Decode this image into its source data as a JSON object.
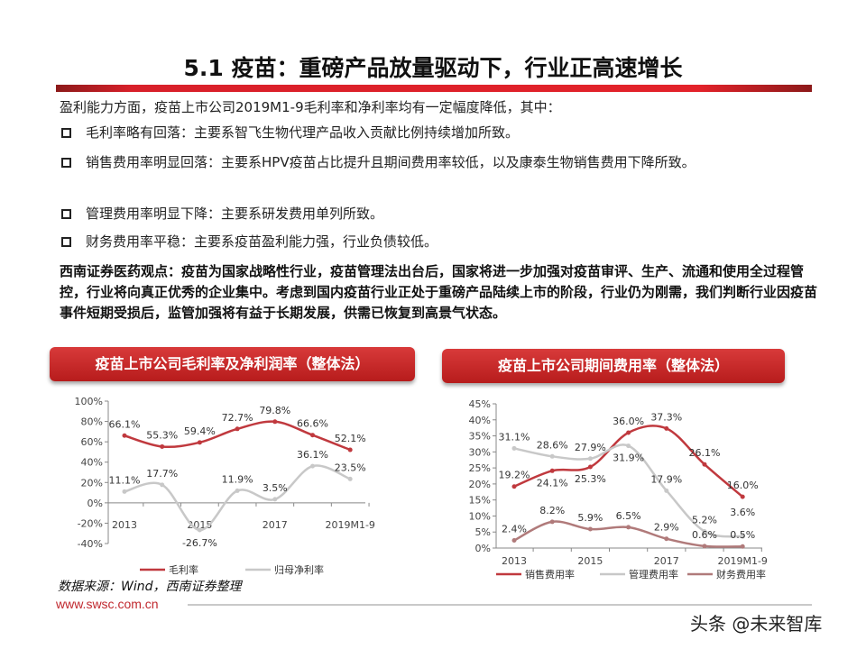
{
  "title": "5.1 疫苗：重磅产品放量驱动下，行业正高速增长",
  "intro": "盈利能力方面，疫苗上市公司2019M1-9毛利率和净利率均有一定幅度降低，其中：",
  "bullets": [
    "毛利率略有回落：主要系智飞生物代理产品收入贡献比例持续增加所致。",
    "销售费用率明显回落：主要系HPV疫苗占比提升且期间费用率较低，以及康泰生物销售费用下降所致。",
    "管理费用率明显下降：主要系研发费用单列所致。",
    "财务费用率平稳：主要系疫苗盈利能力强，行业负债较低。"
  ],
  "opinion": "西南证券医药观点：疫苗为国家战略性行业，疫苗管理法出台后，国家将进一步加强对疫苗审评、生产、流通和使用全过程管控，行业将向真正优秀的企业集中。考虑到国内疫苗行业正处于重磅产品陆续上市的阶段，行业仍为刚需，我们判断行业因疫苗事件短期受损后，监管加强将有益于长期发展，供需已恢复到高景气状态。",
  "source": "数据来源：Wind，西南证券整理",
  "url": "www.swsc.com.cn",
  "watermark": "头条 @未来智库",
  "colors": {
    "accent": "#c0282e",
    "series_red": "#c0393e",
    "series_gray": "#c8c8c8",
    "series_brown": "#b07a7a"
  },
  "chart_data": [
    {
      "type": "line",
      "title": "疫苗上市公司毛利率及净利润率（整体法）",
      "categories": [
        "2013",
        "2014",
        "2015",
        "2016",
        "2017",
        "2018",
        "2019M1-9"
      ],
      "xtick_labels": [
        "2013",
        "",
        "2015",
        "",
        "2017",
        "",
        "2019M1-9"
      ],
      "ylim": [
        -40,
        100
      ],
      "yticks": [
        "100%",
        "80%",
        "60%",
        "40%",
        "20%",
        "0%",
        "-20%",
        "-40%"
      ],
      "ytick_values": [
        100,
        80,
        60,
        40,
        20,
        0,
        -20,
        -40
      ],
      "legend": "bottom",
      "series": [
        {
          "name": "毛利率",
          "color": "#c0393e",
          "values": [
            66.1,
            55.3,
            59.4,
            72.7,
            79.8,
            66.6,
            52.1
          ],
          "labels": [
            "66.1%",
            "55.3%",
            "59.4%",
            "72.7%",
            "79.8%",
            "66.6%",
            "52.1%"
          ]
        },
        {
          "name": "归母净利率",
          "color": "#c8c8c8",
          "values": [
            11.1,
            17.7,
            -26.7,
            11.9,
            3.5,
            36.1,
            23.5
          ],
          "labels": [
            "11.1%",
            "17.7%",
            "-26.7%",
            "11.9%",
            "3.5%",
            "36.1%",
            "23.5%"
          ]
        }
      ]
    },
    {
      "type": "line",
      "title": "疫苗上市公司期间费用率（整体法）",
      "categories": [
        "2013",
        "2014",
        "2015",
        "2016",
        "2017",
        "2018",
        "2019M1-9"
      ],
      "xtick_labels": [
        "2013",
        "",
        "2015",
        "",
        "2017",
        "",
        "2019M1-9"
      ],
      "ylim": [
        0,
        45
      ],
      "yticks": [
        "45%",
        "40%",
        "35%",
        "30%",
        "25%",
        "20%",
        "15%",
        "10%",
        "5%",
        "0%"
      ],
      "ytick_values": [
        45,
        40,
        35,
        30,
        25,
        20,
        15,
        10,
        5,
        0
      ],
      "legend": "bottom",
      "series": [
        {
          "name": "销售费用率",
          "color": "#c0393e",
          "values": [
            19.2,
            24.1,
            25.3,
            36.0,
            37.3,
            26.1,
            16.0
          ],
          "labels": [
            "19.2%",
            "24.1%",
            "25.3%",
            "36.0%",
            "37.3%",
            "26.1%",
            "16.0%"
          ]
        },
        {
          "name": "管理费用率",
          "color": "#c8c8c8",
          "values": [
            31.1,
            28.6,
            27.9,
            31.9,
            17.9,
            5.2,
            3.6
          ],
          "labels": [
            "31.1%",
            "28.6%",
            "27.9%",
            "31.9%",
            "17.9%",
            "5.2%",
            "3.6%"
          ]
        },
        {
          "name": "财务费用率",
          "color": "#b07a7a",
          "values": [
            2.4,
            8.2,
            5.9,
            6.5,
            2.9,
            0.6,
            0.5
          ],
          "labels": [
            "2.4%",
            "8.2%",
            "5.9%",
            "6.5%",
            "2.9%",
            "0.6%",
            "0.5%"
          ]
        }
      ]
    }
  ]
}
